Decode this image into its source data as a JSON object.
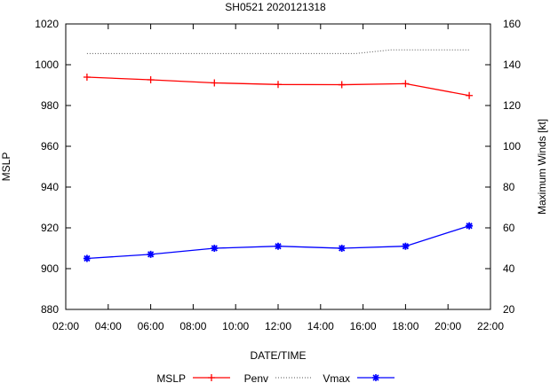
{
  "chart_data": {
    "type": "line",
    "title": "SH0521 2020121318",
    "xlabel": "DATE/TIME",
    "ylabel": "MSLP",
    "y2label": "Maximum Winds [kt]",
    "x_ticks": [
      "02:00",
      "04:00",
      "06:00",
      "08:00",
      "10:00",
      "12:00",
      "14:00",
      "16:00",
      "18:00",
      "20:00",
      "22:00"
    ],
    "x_range_hours": [
      2,
      22
    ],
    "ylim": [
      880,
      1020
    ],
    "y_ticks": [
      880,
      900,
      920,
      940,
      960,
      980,
      1000,
      1020
    ],
    "y2lim": [
      20,
      160
    ],
    "y2_ticks": [
      20,
      40,
      60,
      80,
      100,
      120,
      140,
      160
    ],
    "x_hours": [
      3,
      6,
      9,
      12,
      15,
      18,
      21
    ],
    "series": [
      {
        "name": "MSLP",
        "axis": "left",
        "color": "#ff0000",
        "marker": "plus",
        "values": [
          993.9,
          992.6,
          991.1,
          990.3,
          990.2,
          990.7,
          984.9
        ]
      },
      {
        "name": "Penv",
        "axis": "left",
        "color": "#555555",
        "marker": "none",
        "style": "dotted",
        "x_hours": [
          3,
          6,
          9,
          12,
          15,
          18,
          21
        ],
        "values": [
          1005.5,
          1005.5,
          1005.5,
          1005.5,
          1005.5,
          1007.3,
          1007.3
        ]
      },
      {
        "name": "Vmax",
        "axis": "right",
        "color": "#0000ff",
        "marker": "star",
        "values": [
          45,
          47,
          50,
          51,
          50,
          51,
          61
        ]
      }
    ],
    "legend": {
      "position": "bottom",
      "entries": [
        "MSLP",
        "Penv",
        "Vmax"
      ]
    }
  }
}
